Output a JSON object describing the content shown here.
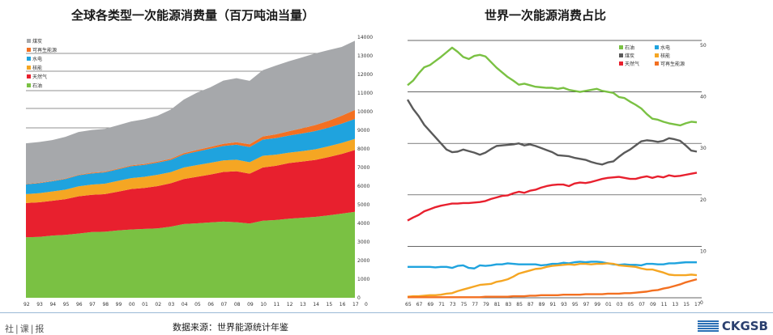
{
  "left_title": "全球各类型一次能源消费量（百万吨油当量）",
  "right_title": "世界一次能源消费占比",
  "footer": {
    "source": "数据来源：世界能源统计年鉴",
    "brand": "CKGSB",
    "left_logo": "社|课|报"
  },
  "colors": {
    "oil": "#7ac143",
    "gas": "#e8202e",
    "nuclear": "#f5a623",
    "hydro": "#1fa3de",
    "renewables": "#f37021",
    "coal": "#a6a8ab",
    "coal_line": "#5a5a5a"
  },
  "chart_data": [
    {
      "type": "area",
      "stacked": true,
      "title": "全球各类型一次能源消费量（百万吨油当量）",
      "x": [
        "92",
        "93",
        "94",
        "95",
        "96",
        "97",
        "98",
        "99",
        "00",
        "01",
        "02",
        "03",
        "04",
        "05",
        "06",
        "07",
        "08",
        "09",
        "10",
        "11",
        "12",
        "13",
        "14",
        "15",
        "16",
        "17"
      ],
      "x_tick_labels": [
        "92",
        "93",
        "94",
        "95",
        "96",
        "97",
        "98",
        "99",
        "00",
        "01",
        "02",
        "03",
        "04",
        "05",
        "06",
        "07",
        "08",
        "09",
        "10",
        "11",
        "12",
        "13",
        "14",
        "15",
        "16",
        "17"
      ],
      "ylim": [
        0,
        14000
      ],
      "y_ticks": [
        0,
        1000,
        2000,
        3000,
        4000,
        5000,
        6000,
        7000,
        8000,
        9000,
        10000,
        11000,
        12000,
        13000,
        14000
      ],
      "y_tick_labels": [
        "0",
        "1000",
        "2000",
        "3000",
        "4000",
        "5000",
        "6000",
        "7000",
        "8000",
        "9000",
        "10000",
        "11000",
        "12000",
        "13000",
        "14000"
      ],
      "legend": [
        "煤炭",
        "可再生能源",
        "水电",
        "核能",
        "天然气",
        "石油"
      ],
      "series": [
        {
          "name": "石油",
          "key": "oil",
          "values": [
            3250,
            3270,
            3340,
            3380,
            3450,
            3530,
            3550,
            3620,
            3670,
            3700,
            3730,
            3820,
            3960,
            4000,
            4050,
            4090,
            4060,
            3990,
            4140,
            4180,
            4250,
            4300,
            4350,
            4430,
            4520,
            4620
          ]
        },
        {
          "name": "天然气",
          "key": "gas",
          "values": [
            1840,
            1860,
            1870,
            1920,
            2000,
            2000,
            2020,
            2080,
            2170,
            2200,
            2270,
            2330,
            2420,
            2500,
            2570,
            2670,
            2740,
            2680,
            2860,
            2910,
            2990,
            3020,
            3060,
            3130,
            3210,
            3320
          ]
        },
        {
          "name": "核能",
          "key": "nuclear",
          "values": [
            480,
            490,
            500,
            510,
            540,
            550,
            560,
            580,
            590,
            600,
            610,
            600,
            620,
            630,
            630,
            620,
            620,
            610,
            630,
            600,
            560,
            560,
            570,
            580,
            590,
            600
          ]
        },
        {
          "name": "水电",
          "key": "hydro",
          "values": [
            530,
            540,
            550,
            570,
            590,
            600,
            610,
            620,
            640,
            640,
            650,
            660,
            700,
            730,
            760,
            780,
            810,
            820,
            870,
            890,
            920,
            950,
            980,
            1000,
            1040,
            1070
          ]
        },
        {
          "name": "可再生能源",
          "key": "renewables",
          "values": [
            20,
            22,
            25,
            28,
            30,
            35,
            38,
            40,
            45,
            50,
            55,
            60,
            70,
            80,
            95,
            110,
            130,
            150,
            170,
            200,
            230,
            280,
            320,
            370,
            420,
            480
          ]
        },
        {
          "name": "煤炭",
          "key": "coal",
          "values": [
            2180,
            2190,
            2190,
            2240,
            2300,
            2300,
            2300,
            2330,
            2360,
            2400,
            2470,
            2640,
            2880,
            3080,
            3200,
            3400,
            3440,
            3410,
            3560,
            3700,
            3760,
            3810,
            3850,
            3800,
            3700,
            3720
          ]
        }
      ]
    },
    {
      "type": "line",
      "title": "世界一次能源消费占比",
      "x": [
        "65",
        "66",
        "67",
        "68",
        "69",
        "70",
        "71",
        "72",
        "73",
        "74",
        "75",
        "76",
        "77",
        "78",
        "79",
        "80",
        "81",
        "82",
        "83",
        "84",
        "85",
        "86",
        "87",
        "88",
        "89",
        "90",
        "91",
        "92",
        "93",
        "94",
        "95",
        "96",
        "97",
        "98",
        "99",
        "00",
        "01",
        "02",
        "03",
        "04",
        "05",
        "06",
        "07",
        "08",
        "09",
        "10",
        "11",
        "12",
        "13",
        "14",
        "15",
        "16",
        "17"
      ],
      "x_tick_labels": [
        "65",
        "67",
        "69",
        "71",
        "73",
        "75",
        "77",
        "79",
        "81",
        "83",
        "85",
        "87",
        "89",
        "91",
        "93",
        "95",
        "97",
        "99",
        "01",
        "03",
        "05",
        "07",
        "09",
        "11",
        "13",
        "15",
        "17"
      ],
      "ylim": [
        0,
        50
      ],
      "y_ticks": [
        0,
        10,
        20,
        30,
        40,
        50
      ],
      "y_tick_labels": [
        "0",
        "10",
        "20",
        "30",
        "40",
        "50"
      ],
      "legend": [
        "石油",
        "水电",
        "煤炭",
        "核能",
        "天然气",
        "可再生能源"
      ],
      "series": [
        {
          "name": "石油",
          "key": "oil",
          "values": [
            41.3,
            42.2,
            43.6,
            44.8,
            45.2,
            46.0,
            46.8,
            47.7,
            48.6,
            47.8,
            46.8,
            46.4,
            47.0,
            47.2,
            46.9,
            45.8,
            44.7,
            43.8,
            42.9,
            42.2,
            41.4,
            41.6,
            41.3,
            41.0,
            40.9,
            40.8,
            40.8,
            40.6,
            40.8,
            40.4,
            40.2,
            40.0,
            40.2,
            40.4,
            40.6,
            40.2,
            40.0,
            39.8,
            39.0,
            38.8,
            38.1,
            37.5,
            36.8,
            35.7,
            34.8,
            34.6,
            34.2,
            33.9,
            33.7,
            33.5,
            33.9,
            34.2,
            34.1
          ]
        },
        {
          "name": "煤炭",
          "key": "coal_line",
          "values": [
            38.5,
            36.7,
            35.3,
            33.6,
            32.4,
            31.2,
            30.0,
            28.8,
            28.3,
            28.4,
            28.8,
            28.5,
            28.2,
            27.8,
            28.2,
            28.9,
            29.5,
            29.6,
            29.7,
            29.8,
            30.0,
            29.6,
            29.8,
            29.5,
            29.1,
            28.7,
            28.3,
            27.7,
            27.6,
            27.5,
            27.2,
            27.0,
            26.8,
            26.4,
            26.1,
            25.9,
            26.3,
            26.5,
            27.4,
            28.2,
            28.8,
            29.6,
            30.4,
            30.6,
            30.5,
            30.3,
            30.5,
            31.0,
            30.8,
            30.5,
            29.6,
            28.6,
            28.4
          ]
        },
        {
          "name": "天然气",
          "key": "gas",
          "values": [
            15.0,
            15.6,
            16.1,
            16.8,
            17.2,
            17.6,
            17.9,
            18.1,
            18.3,
            18.3,
            18.4,
            18.4,
            18.5,
            18.6,
            18.8,
            19.2,
            19.5,
            19.8,
            19.9,
            20.3,
            20.6,
            20.4,
            20.8,
            21.0,
            21.4,
            21.7,
            21.9,
            22.0,
            22.0,
            21.7,
            22.2,
            22.4,
            22.3,
            22.5,
            22.8,
            23.1,
            23.3,
            23.4,
            23.5,
            23.3,
            23.1,
            23.1,
            23.4,
            23.6,
            23.3,
            23.6,
            23.4,
            23.8,
            23.6,
            23.7,
            23.9,
            24.1,
            24.3
          ]
        },
        {
          "name": "水电",
          "key": "hydro",
          "values": [
            6.0,
            6.0,
            6.0,
            6.0,
            6.0,
            5.9,
            6.0,
            6.0,
            5.8,
            6.2,
            6.3,
            5.8,
            5.7,
            6.3,
            6.2,
            6.3,
            6.5,
            6.5,
            6.7,
            6.6,
            6.5,
            6.5,
            6.5,
            6.5,
            6.3,
            6.4,
            6.6,
            6.6,
            6.8,
            6.7,
            6.9,
            7.0,
            6.9,
            7.0,
            7.0,
            6.9,
            6.7,
            6.5,
            6.4,
            6.5,
            6.4,
            6.4,
            6.3,
            6.6,
            6.6,
            6.5,
            6.5,
            6.7,
            6.7,
            6.8,
            6.9,
            6.9,
            6.9
          ]
        },
        {
          "name": "核能",
          "key": "nuclear",
          "values": [
            0.2,
            0.3,
            0.3,
            0.4,
            0.5,
            0.5,
            0.6,
            0.8,
            0.9,
            1.3,
            1.6,
            1.9,
            2.2,
            2.5,
            2.6,
            2.7,
            3.1,
            3.3,
            3.6,
            4.1,
            4.7,
            5.0,
            5.3,
            5.6,
            5.7,
            6.0,
            6.2,
            6.3,
            6.4,
            6.5,
            6.4,
            6.6,
            6.6,
            6.5,
            6.6,
            6.6,
            6.7,
            6.6,
            6.3,
            6.2,
            6.1,
            6.0,
            5.7,
            5.5,
            5.5,
            5.2,
            4.9,
            4.5,
            4.4,
            4.4,
            4.4,
            4.5,
            4.4
          ]
        },
        {
          "name": "可再生能源",
          "key": "renewables",
          "values": [
            0.1,
            0.1,
            0.1,
            0.1,
            0.1,
            0.1,
            0.1,
            0.1,
            0.1,
            0.1,
            0.1,
            0.1,
            0.1,
            0.1,
            0.2,
            0.2,
            0.2,
            0.2,
            0.2,
            0.3,
            0.3,
            0.3,
            0.4,
            0.4,
            0.5,
            0.5,
            0.5,
            0.5,
            0.6,
            0.6,
            0.6,
            0.6,
            0.7,
            0.7,
            0.7,
            0.7,
            0.8,
            0.8,
            0.8,
            0.9,
            0.9,
            1.0,
            1.1,
            1.2,
            1.4,
            1.5,
            1.8,
            2.0,
            2.3,
            2.6,
            3.0,
            3.3,
            3.6
          ]
        }
      ]
    }
  ]
}
